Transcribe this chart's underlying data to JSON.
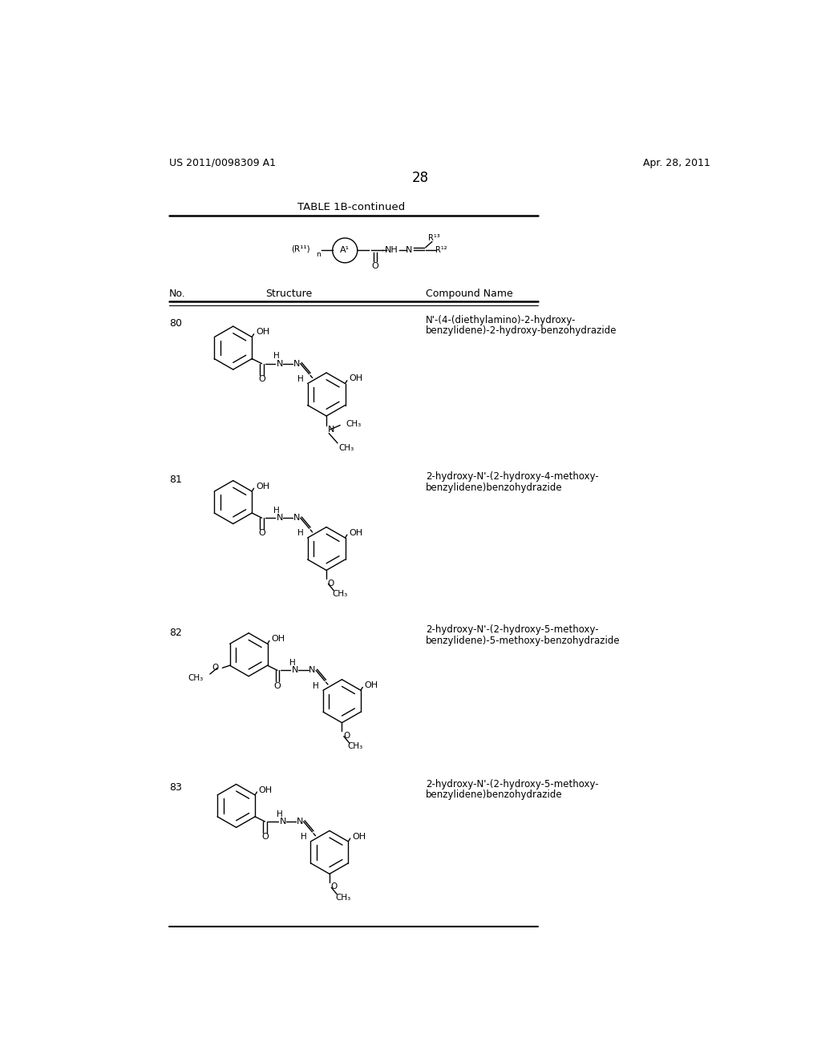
{
  "page_number": "28",
  "patent_number": "US 2011/0098309 A1",
  "patent_date": "Apr. 28, 2011",
  "table_title": "TABLE 1B-continued",
  "bg_color": "#ffffff",
  "text_color": "#000000"
}
